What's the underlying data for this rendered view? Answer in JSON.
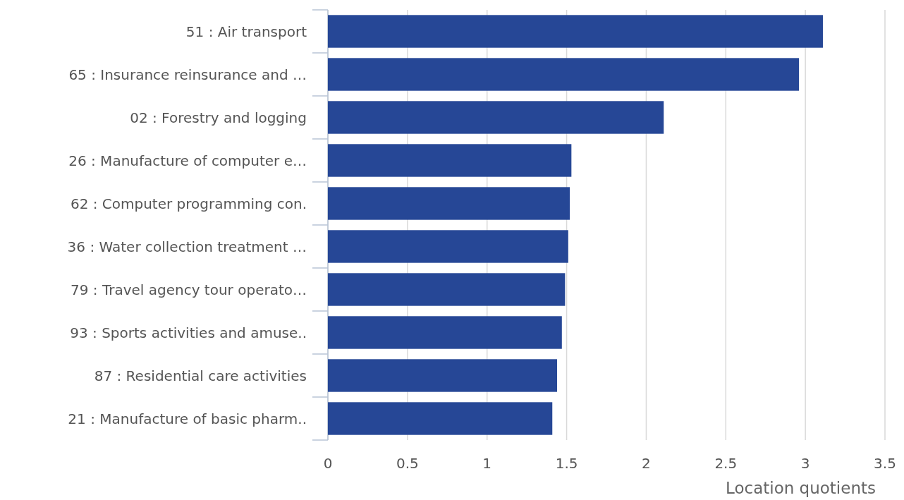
{
  "chart_data": {
    "type": "bar",
    "orientation": "horizontal",
    "xlabel": "Location quotients",
    "categories": [
      "51 : Air transport",
      "65 : Insurance reinsurance and …",
      "02 : Forestry and logging",
      "26 : Manufacture of computer e…",
      "62 : Computer programming con.",
      "36 : Water collection treatment …",
      "79 : Travel agency tour operato…",
      "93 : Sports activities and amuse..",
      "87 : Residential care activities",
      "21 : Manufacture of basic pharm.."
    ],
    "values": [
      3.11,
      2.96,
      2.11,
      1.53,
      1.52,
      1.51,
      1.49,
      1.47,
      1.44,
      1.41
    ],
    "color": "#264796",
    "xlim": [
      0,
      3.5
    ],
    "xticks": [
      0,
      0.5,
      1,
      1.5,
      2,
      2.5,
      3,
      3.5
    ],
    "grid": "x"
  }
}
